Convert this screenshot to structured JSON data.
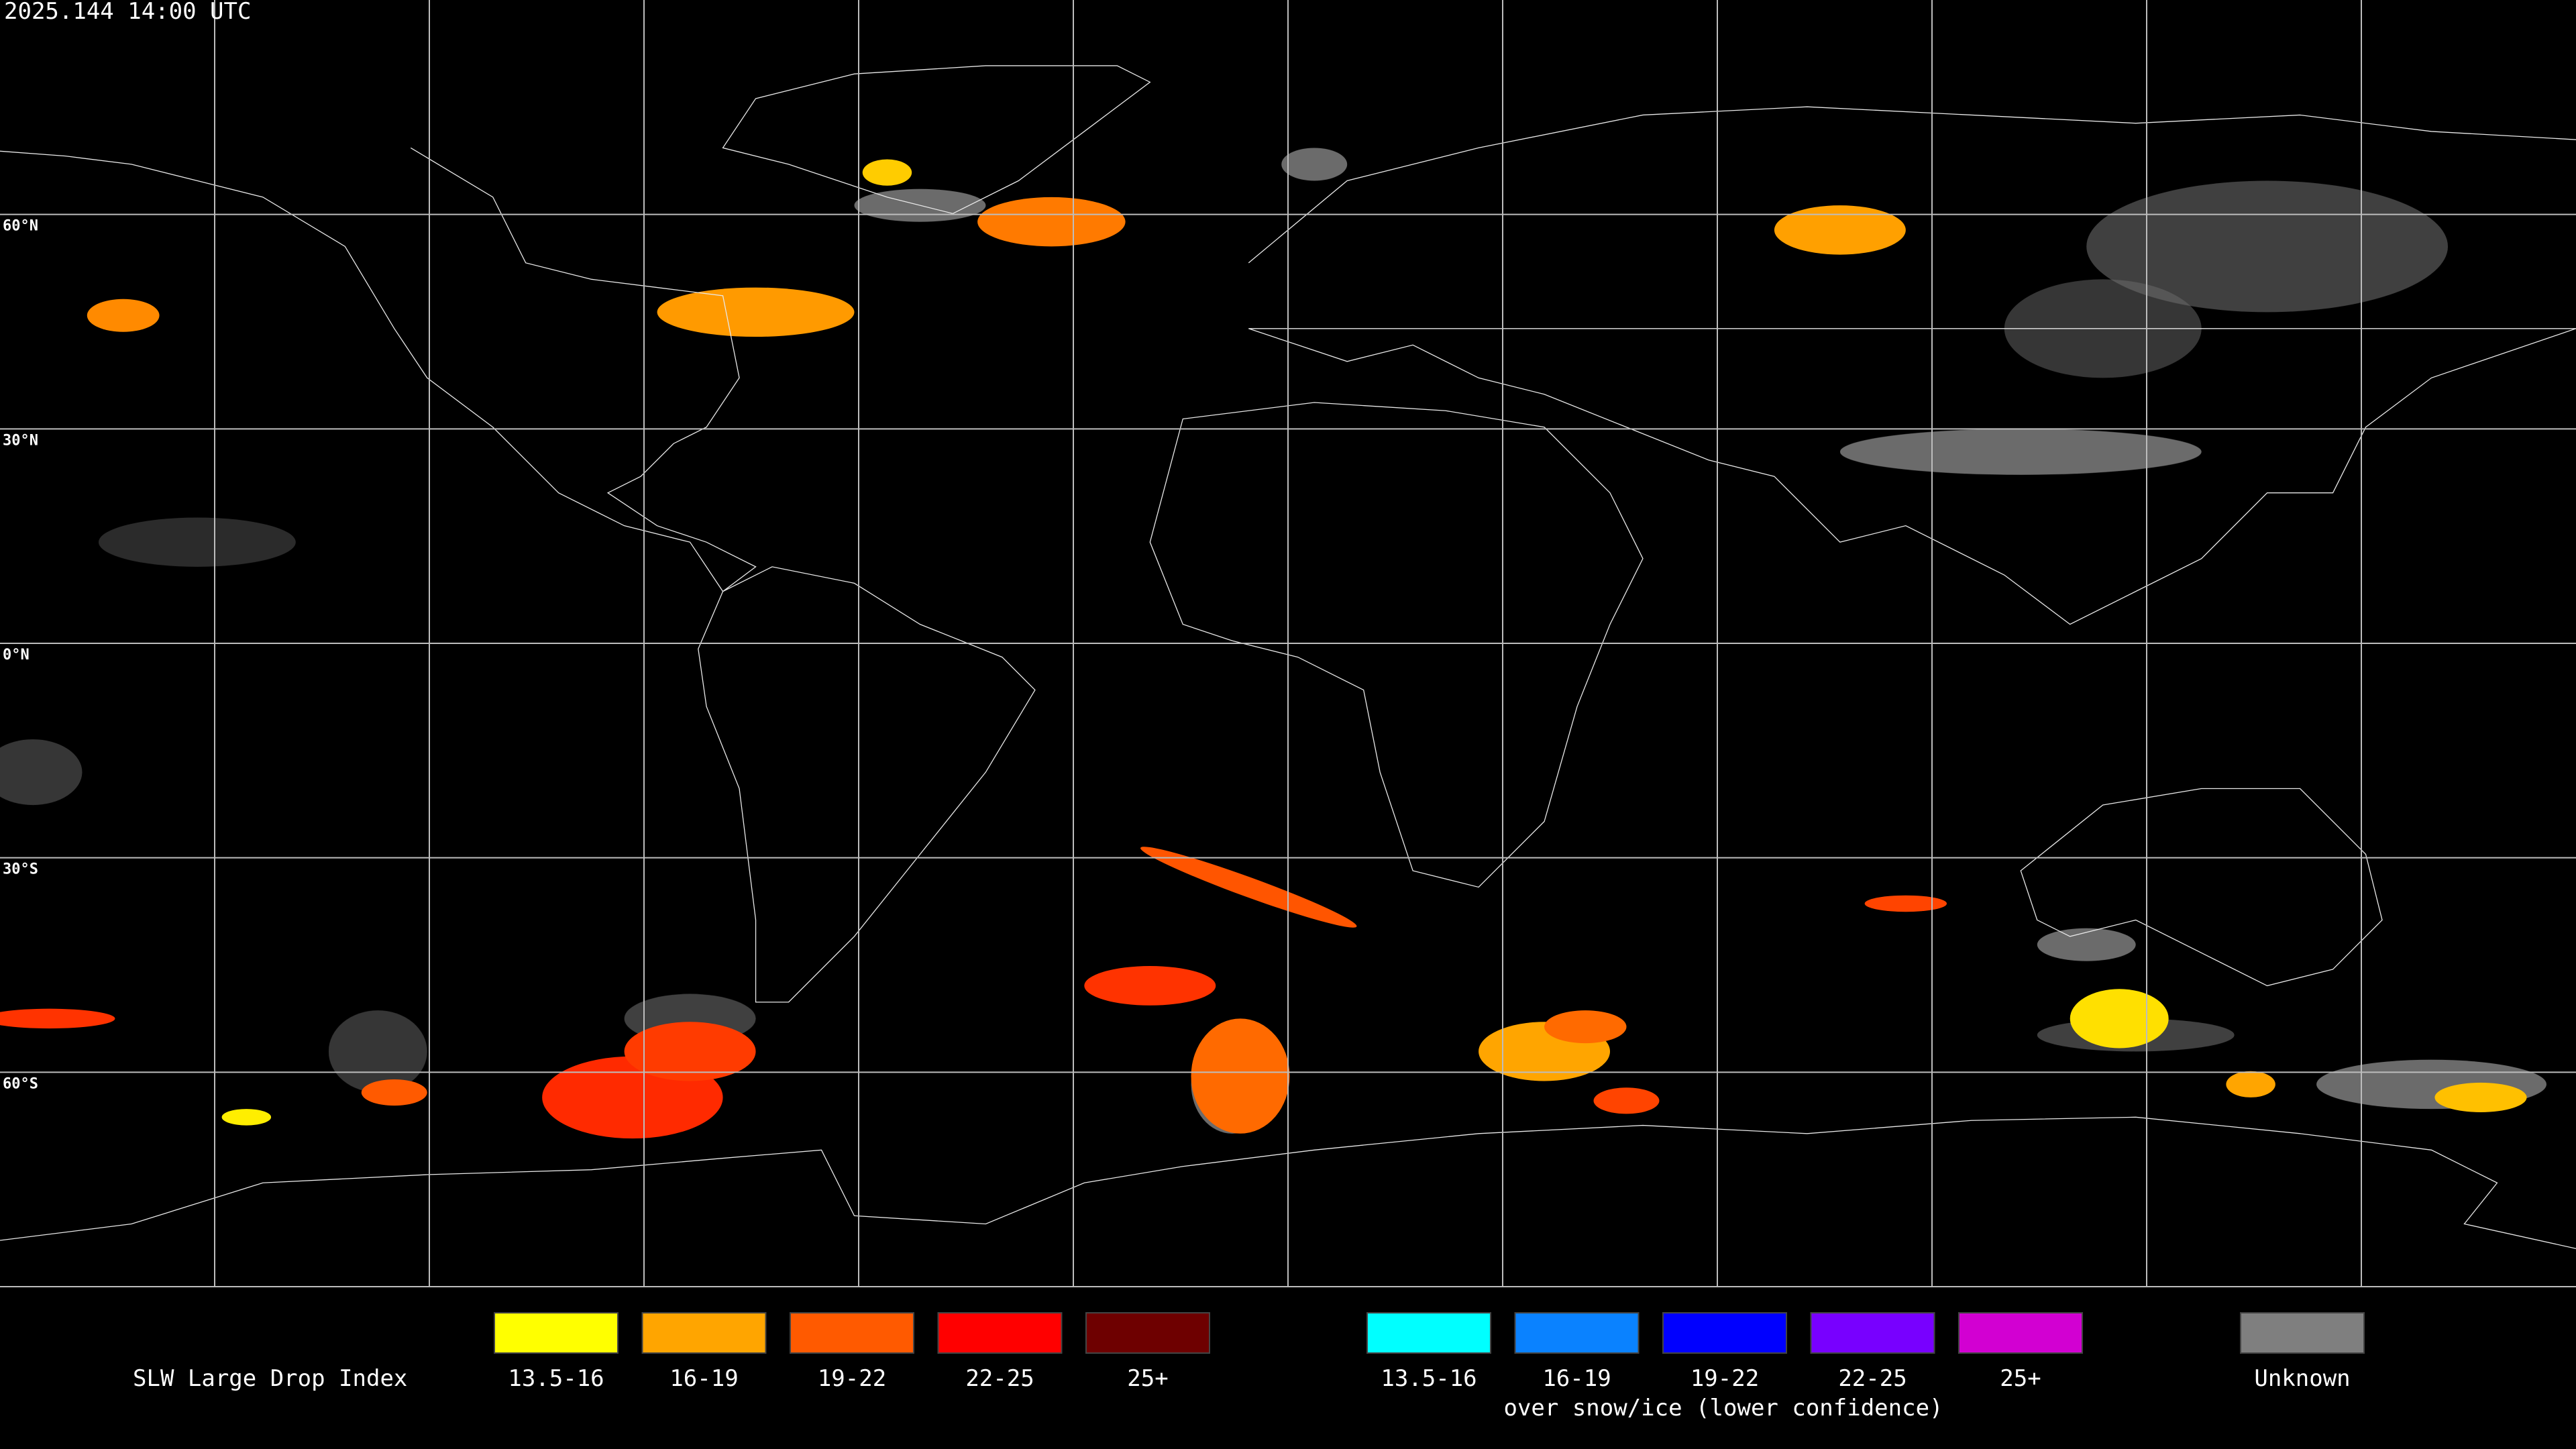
{
  "header": {
    "timestamp": "2025.144 14:00 UTC"
  },
  "map": {
    "lat_labels": [
      "60°N",
      "30°N",
      "0°N",
      "30°S",
      "60°S"
    ]
  },
  "legend": {
    "title": "SLW Large Drop Index",
    "items": [
      {
        "label": "13.5-16",
        "color": "#ffff00"
      },
      {
        "label": "16-19",
        "color": "#ffa500"
      },
      {
        "label": "19-22",
        "color": "#ff5a00"
      },
      {
        "label": "22-25",
        "color": "#ff0000"
      },
      {
        "label": "25+",
        "color": "#6e0000"
      }
    ],
    "snow_items": [
      {
        "label": "13.5-16",
        "color": "#00ffff"
      },
      {
        "label": "16-19",
        "color": "#0a82ff"
      },
      {
        "label": "19-22",
        "color": "#0000ff"
      },
      {
        "label": "22-25",
        "color": "#7800ff"
      },
      {
        "label": "25+",
        "color": "#d200d2"
      }
    ],
    "snow_caption": "over snow/ice (lower confidence)",
    "unknown": {
      "label": "Unknown",
      "color": "#7f7f7f"
    }
  }
}
